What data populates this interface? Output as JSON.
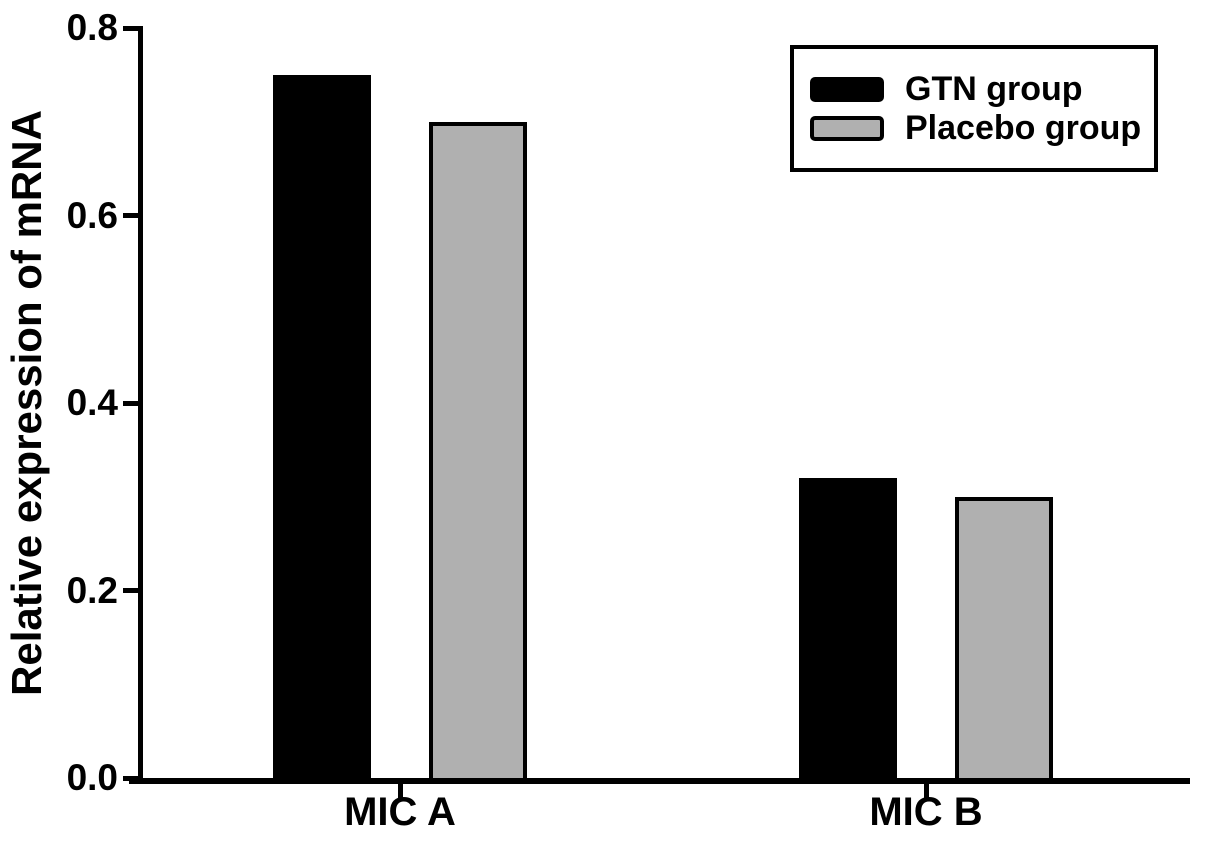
{
  "chart_data": {
    "type": "bar",
    "title": "",
    "ylabel": "Relative expression of mRNA",
    "xlabel": "",
    "categories": [
      "MIC A",
      "MIC B"
    ],
    "series": [
      {
        "name": "GTN group",
        "color": "#000000",
        "values": [
          0.75,
          0.32
        ]
      },
      {
        "name": "Placebo group",
        "color": "#b0b0b0",
        "values": [
          0.7,
          0.3
        ]
      }
    ],
    "ylim": [
      0,
      0.8
    ],
    "y_ticks": [
      "0.0",
      "0.2",
      "0.4",
      "0.6",
      "0.8"
    ],
    "grid": false,
    "legend_position": "top-right",
    "axis_color": "#000000",
    "background_color": "#ffffff"
  }
}
